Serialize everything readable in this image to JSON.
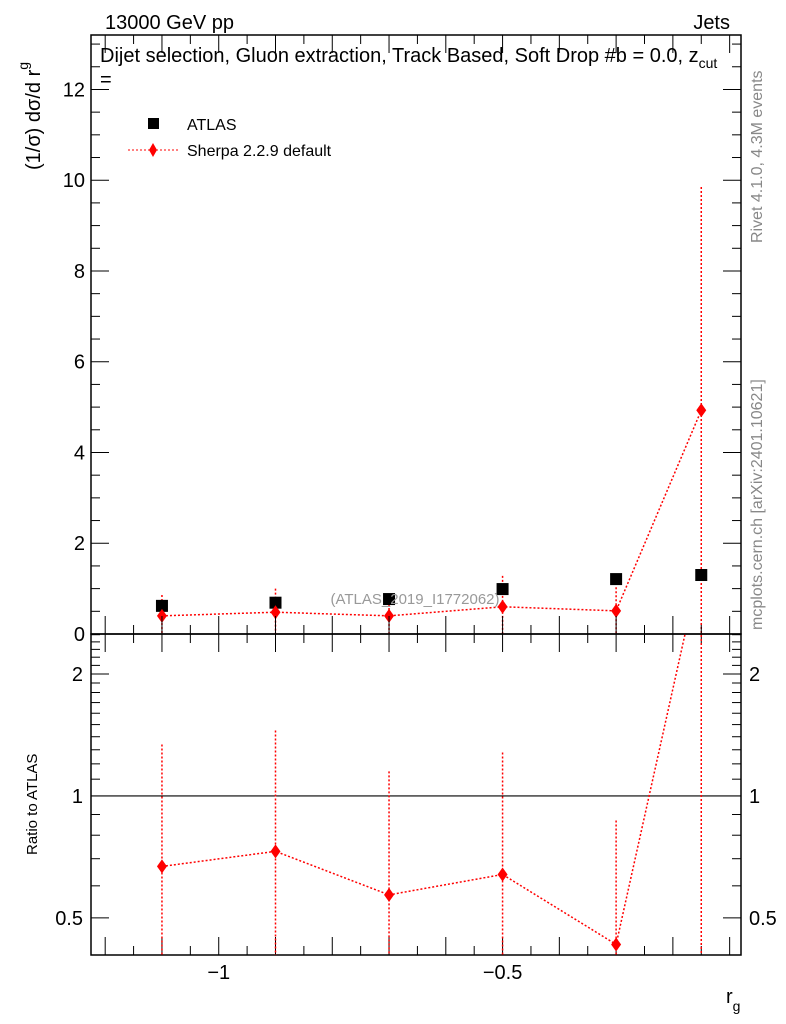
{
  "header": {
    "energy": "13000 GeV pp",
    "process": "Jets",
    "title": "Dijet selection, Gluon extraction, Track Based, Soft Drop #b = 0.0, z",
    "title_sub": "cut",
    "title_tail": " =",
    "rivet": "Rivet 4.1.0,  4.3M events",
    "source": "mcplots.cern.ch [arXiv:2401.10621]",
    "watermark": "(ATLAS_2019_I1772062)"
  },
  "chart_data": [
    {
      "type": "scatter",
      "panel": "main",
      "ylabel": "(1/σ) dσ/d r",
      "ylabel_sub": "g",
      "xlim": [
        -1.225,
        -0.08
      ],
      "ylim": [
        0,
        13.2
      ],
      "yticks": [
        0,
        2,
        4,
        6,
        8,
        10,
        12
      ],
      "legend_placement": "top-left",
      "x": [
        -1.1,
        -0.9,
        -0.7,
        -0.5,
        -0.3,
        -0.15
      ],
      "series": [
        {
          "name": "ATLAS",
          "color": "#000000",
          "marker": "square",
          "values": [
            0.62,
            0.69,
            0.77,
            0.99,
            1.21,
            1.3
          ]
        },
        {
          "name": "Sherpa 2.2.9 default",
          "color": "#ff0000",
          "marker": "diamond",
          "values": [
            0.4,
            0.48,
            0.4,
            0.6,
            0.51,
            4.93
          ],
          "err_up": [
            0.86,
            1.0,
            0.75,
            1.28,
            1.03,
            9.85
          ],
          "err_down": [
            0,
            0,
            0,
            0,
            0,
            0
          ]
        }
      ]
    },
    {
      "type": "line",
      "panel": "ratio",
      "ylabel": "Ratio to ATLAS",
      "xlabel": "r",
      "xlabel_sub": "g",
      "yscale": "log",
      "ylim": [
        0.405,
        2.51
      ],
      "yticks": [
        0.5,
        1,
        2
      ],
      "ytick_labels": [
        "0.5",
        "1",
        "2"
      ],
      "xticks": [
        -1,
        -0.5
      ],
      "xtick_labels": [
        "−1",
        "−0.5"
      ],
      "reference": 1,
      "x": [
        -1.1,
        -0.9,
        -0.7,
        -0.5,
        -0.3,
        -0.15
      ],
      "series": [
        {
          "name": "Sherpa 2.2.9 default",
          "color": "#ff0000",
          "values": [
            0.67,
            0.73,
            0.57,
            0.64,
            0.43,
            3.8
          ],
          "err_up": [
            1.34,
            1.45,
            1.15,
            1.28,
            0.87,
            7.6
          ],
          "err_down": [
            0.3,
            0.3,
            0.3,
            0.3,
            0.3,
            0.3
          ]
        }
      ]
    }
  ]
}
